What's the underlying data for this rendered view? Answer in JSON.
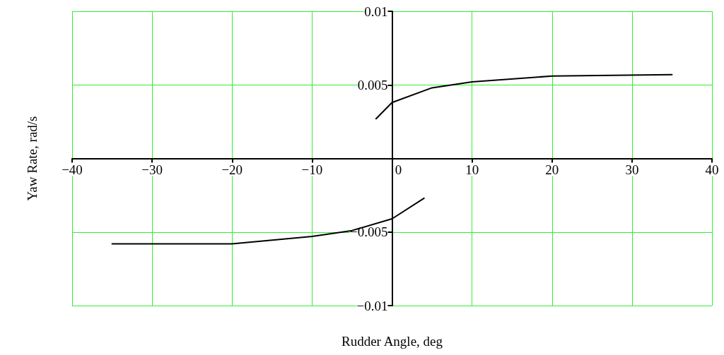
{
  "chart_data": {
    "type": "line",
    "xlabel": "Rudder Angle, deg",
    "ylabel": "Yaw Rate, rad/s",
    "xlim": [
      -40,
      40
    ],
    "ylim": [
      -0.01,
      0.01
    ],
    "xticks": [
      {
        "value": -40,
        "label": "−40"
      },
      {
        "value": -30,
        "label": "−30"
      },
      {
        "value": -20,
        "label": "−20"
      },
      {
        "value": -10,
        "label": "−10"
      },
      0,
      10,
      20,
      30,
      40
    ],
    "yticks": [
      {
        "value": -0.01,
        "label": "−0.01"
      },
      {
        "value": -0.005,
        "label": "−0.005"
      },
      {
        "value": 0,
        "label": null
      },
      0.005,
      0.01
    ],
    "grid": true,
    "marker": "none",
    "line_style": "solid",
    "series": [
      {
        "color": "#000000",
        "x": [
          -2,
          0,
          5,
          10,
          20,
          35
        ],
        "values": [
          0.0027,
          0.0038,
          0.0048,
          0.0052,
          0.0056,
          0.0057
        ]
      },
      {
        "color": "#000000",
        "x": [
          -35,
          -20,
          -10,
          -5,
          0,
          4
        ],
        "values": [
          -0.0058,
          -0.0058,
          -0.0053,
          -0.0049,
          -0.0041,
          -0.0027
        ]
      }
    ]
  }
}
